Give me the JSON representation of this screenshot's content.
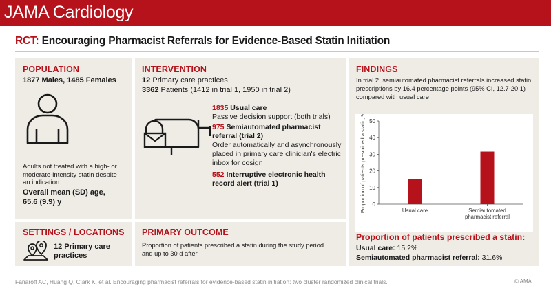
{
  "header": {
    "journal": "JAMA Cardiology"
  },
  "title": {
    "prefix": "RCT:",
    "text": "Encouraging Pharmacist Referrals for Evidence-Based Statin Initiation"
  },
  "population": {
    "heading": "POPULATION",
    "counts": "1877 Males, 1485 Females",
    "desc": [
      "Adults not treated with a high- or",
      "moderate-intensity statin despite",
      "an indication"
    ],
    "age": [
      "Overall mean (SD) age,",
      "65.6 (9.9) y"
    ]
  },
  "intervention": {
    "heading": "INTERVENTION",
    "practices_num": "12",
    "practices_text": "Primary care practices",
    "patients_num": "3362",
    "patients_text": "Patients (1412 in trial 1, 1950 in trial 2)",
    "arms": [
      {
        "num": "1835",
        "name": "Usual care",
        "lines": [
          "Passive decision support (both trials)"
        ]
      },
      {
        "num": "975",
        "name": "Semiautomated pharmacist",
        "name2": "referral (trial 2)",
        "lines": [
          "Order automatically and asynchronously",
          "placed in primary care clinician's electric",
          "inbox for cosign"
        ]
      },
      {
        "num": "552",
        "name": "Interruptive electronic health",
        "name2": "record alert (trial 1)",
        "lines": []
      }
    ]
  },
  "findings": {
    "heading": "FINDINGS",
    "text": [
      "In trial 2, semiautomated pharmacist referrals increased statin",
      "prescriptions by 16.4 percentage points (95% CI, 12.7-20.1)",
      "compared with usual care"
    ],
    "proportion_heading": "Proportion of patients prescribed a statin:",
    "usual_label": "Usual care:",
    "usual_value": "15.2%",
    "semi_label": "Semiautomated pharmacist referral:",
    "semi_value": "31.6%"
  },
  "settings": {
    "heading": "SETTINGS / LOCATIONS",
    "text": [
      "12 Primary care",
      "practices"
    ]
  },
  "primary_outcome": {
    "heading": "PRIMARY OUTCOME",
    "text": [
      "Proportion of patients prescribed a statin during the study period",
      "and up to 30 d after"
    ]
  },
  "footer": {
    "citation": "Fanaroff AC, Huang Q, Clark K, et al. Encouraging pharmacist referrals for evidence-based statin initiation: two cluster randomized clinical trials.",
    "copyright": "© AMA"
  },
  "chart_data": {
    "type": "bar",
    "categories": [
      "Usual care",
      "Semiautomated|pharmacist referral"
    ],
    "values": [
      15.2,
      31.6
    ],
    "ylabel": "Proportion of patients prescribed a statin, %",
    "ylim": [
      0,
      50
    ],
    "yticks": [
      0,
      10,
      20,
      30,
      40,
      50
    ],
    "bar_color": "#b5121b",
    "grid": false
  },
  "colors": {
    "accent": "#b5121b",
    "panel": "#efece6"
  },
  "icons": [
    "person-icon",
    "mailbox-icon",
    "location-pins-icon"
  ]
}
